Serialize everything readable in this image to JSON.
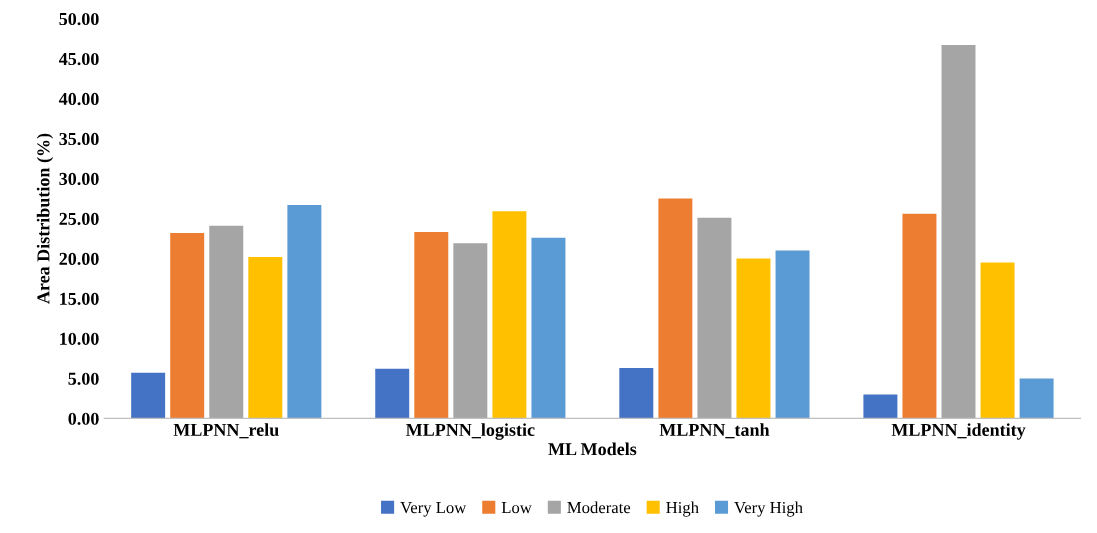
{
  "chart_data": {
    "type": "bar",
    "xlabel": "ML Models",
    "ylabel": "Area Distribution (%)",
    "categories": [
      "MLPNN_relu",
      "MLPNN_logistic",
      "MLPNN_tanh",
      "MLPNN_identity"
    ],
    "series": [
      {
        "name": "Very Low",
        "color": "#4472c4",
        "values": [
          5.7,
          6.2,
          6.3,
          3.0
        ]
      },
      {
        "name": "Low",
        "color": "#ed7d31",
        "values": [
          23.2,
          23.3,
          27.5,
          25.6
        ]
      },
      {
        "name": "Moderate",
        "color": "#a5a5a5",
        "values": [
          24.1,
          21.9,
          25.1,
          46.7
        ]
      },
      {
        "name": "High",
        "color": "#ffc000",
        "values": [
          20.2,
          25.9,
          20.0,
          19.5
        ]
      },
      {
        "name": "Very High",
        "color": "#5b9bd5",
        "values": [
          26.7,
          22.6,
          21.0,
          5.0
        ]
      }
    ],
    "ylim": [
      0,
      50
    ],
    "yticks": [
      {
        "value": 0,
        "label": "0.00"
      },
      {
        "value": 5,
        "label": "5.00"
      },
      {
        "value": 10,
        "label": "10.00"
      },
      {
        "value": 15,
        "label": "15.00"
      },
      {
        "value": 20,
        "label": "20.00"
      },
      {
        "value": 25,
        "label": "25.00"
      },
      {
        "value": 30,
        "label": "30.00"
      },
      {
        "value": 35,
        "label": "35.00"
      },
      {
        "value": 40,
        "label": "40.00"
      },
      {
        "value": 45,
        "label": "45.00"
      },
      {
        "value": 50,
        "label": "50.00"
      }
    ],
    "grid": false,
    "legend": "bottom"
  }
}
